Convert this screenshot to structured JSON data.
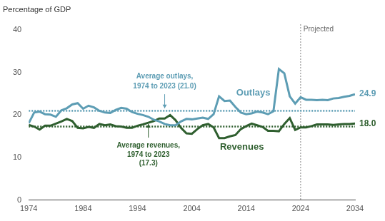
{
  "chart_data": {
    "type": "line",
    "ylabel": "Percentage of GDP",
    "x": [
      1974,
      1975,
      1976,
      1977,
      1978,
      1979,
      1980,
      1981,
      1982,
      1983,
      1984,
      1985,
      1986,
      1987,
      1988,
      1989,
      1990,
      1991,
      1992,
      1993,
      1994,
      1995,
      1996,
      1997,
      1998,
      1999,
      2000,
      2001,
      2002,
      2003,
      2004,
      2005,
      2006,
      2007,
      2008,
      2009,
      2010,
      2011,
      2012,
      2013,
      2014,
      2015,
      2016,
      2017,
      2018,
      2019,
      2020,
      2021,
      2022,
      2023,
      2024,
      2025,
      2026,
      2027,
      2028,
      2029,
      2030,
      2031,
      2032,
      2033,
      2034
    ],
    "series": [
      {
        "name": "Outlays",
        "color": "#5d9db4",
        "values": [
          18.1,
          20.6,
          20.8,
          20.2,
          20.1,
          19.6,
          21.1,
          21.6,
          22.5,
          22.8,
          21.5,
          22.2,
          21.8,
          21.0,
          20.6,
          20.5,
          21.2,
          21.7,
          21.5,
          20.7,
          20.3,
          20.0,
          19.6,
          18.9,
          18.5,
          17.9,
          17.6,
          17.6,
          18.5,
          19.1,
          19.0,
          19.2,
          19.4,
          19.1,
          20.2,
          24.4,
          23.3,
          23.4,
          21.9,
          20.6,
          20.2,
          20.4,
          20.8,
          20.6,
          20.2,
          20.9,
          30.8,
          29.8,
          24.4,
          22.7,
          24.2,
          23.6,
          23.6,
          23.5,
          23.6,
          23.5,
          23.9,
          24.0,
          24.3,
          24.5,
          24.9
        ],
        "value_labels": [
          null,
          null,
          null,
          null,
          null,
          null,
          null,
          null,
          null,
          null,
          null,
          null,
          null,
          null,
          null,
          null,
          null,
          null,
          null,
          null,
          null,
          null,
          null,
          null,
          null,
          null,
          null,
          null,
          null,
          null,
          null,
          null,
          null,
          null,
          null,
          null,
          null,
          null,
          null,
          null,
          null,
          null,
          null,
          null,
          null,
          null,
          null,
          null,
          null,
          null,
          null,
          null,
          null,
          null,
          null,
          null,
          null,
          null,
          null,
          null,
          "24.9"
        ]
      },
      {
        "name": "Revenues",
        "color": "#2f5f2f",
        "values": [
          17.7,
          17.3,
          16.6,
          17.5,
          17.5,
          18.0,
          18.5,
          19.1,
          18.6,
          17.0,
          16.9,
          17.2,
          17.0,
          17.9,
          17.6,
          17.8,
          17.4,
          17.3,
          17.0,
          17.0,
          17.5,
          17.8,
          18.2,
          18.6,
          19.2,
          19.2,
          20.0,
          18.8,
          17.0,
          15.7,
          15.6,
          16.7,
          17.6,
          17.9,
          17.1,
          14.6,
          14.6,
          15.0,
          15.3,
          16.7,
          17.4,
          18.0,
          17.6,
          17.2,
          16.3,
          16.3,
          16.2,
          17.9,
          19.3,
          16.5,
          17.1,
          17.1,
          17.4,
          17.8,
          17.8,
          17.8,
          17.7,
          17.8,
          17.9,
          17.9,
          18.0
        ],
        "value_labels": [
          null,
          null,
          null,
          null,
          null,
          null,
          null,
          null,
          null,
          null,
          null,
          null,
          null,
          null,
          null,
          null,
          null,
          null,
          null,
          null,
          null,
          null,
          null,
          null,
          null,
          null,
          null,
          null,
          null,
          null,
          null,
          null,
          null,
          null,
          null,
          null,
          null,
          null,
          null,
          null,
          null,
          null,
          null,
          null,
          null,
          null,
          null,
          null,
          null,
          null,
          null,
          null,
          null,
          null,
          null,
          null,
          null,
          null,
          null,
          null,
          "18.0"
        ]
      }
    ],
    "reference_lines": [
      {
        "label": [
          "Average outlays,",
          "1974 to 2023 (21.0)"
        ],
        "value": 21.0,
        "color": "#5d9db4",
        "line_style": "dotted"
      },
      {
        "label": [
          "Average revenues,",
          "1974 to 2023",
          "(17.3)"
        ],
        "value": 17.3,
        "color": "#2f5f2f",
        "line_style": "dotted"
      }
    ],
    "annotations": [
      {
        "text": "Projected",
        "x": 2024
      }
    ],
    "xlim": [
      1974,
      2034
    ],
    "xticks": [
      1974,
      1984,
      1994,
      2004,
      2014,
      2024,
      2034
    ],
    "ylim": [
      0,
      40
    ],
    "yticks": [
      0,
      10,
      20,
      30,
      40
    ],
    "grid": false
  }
}
